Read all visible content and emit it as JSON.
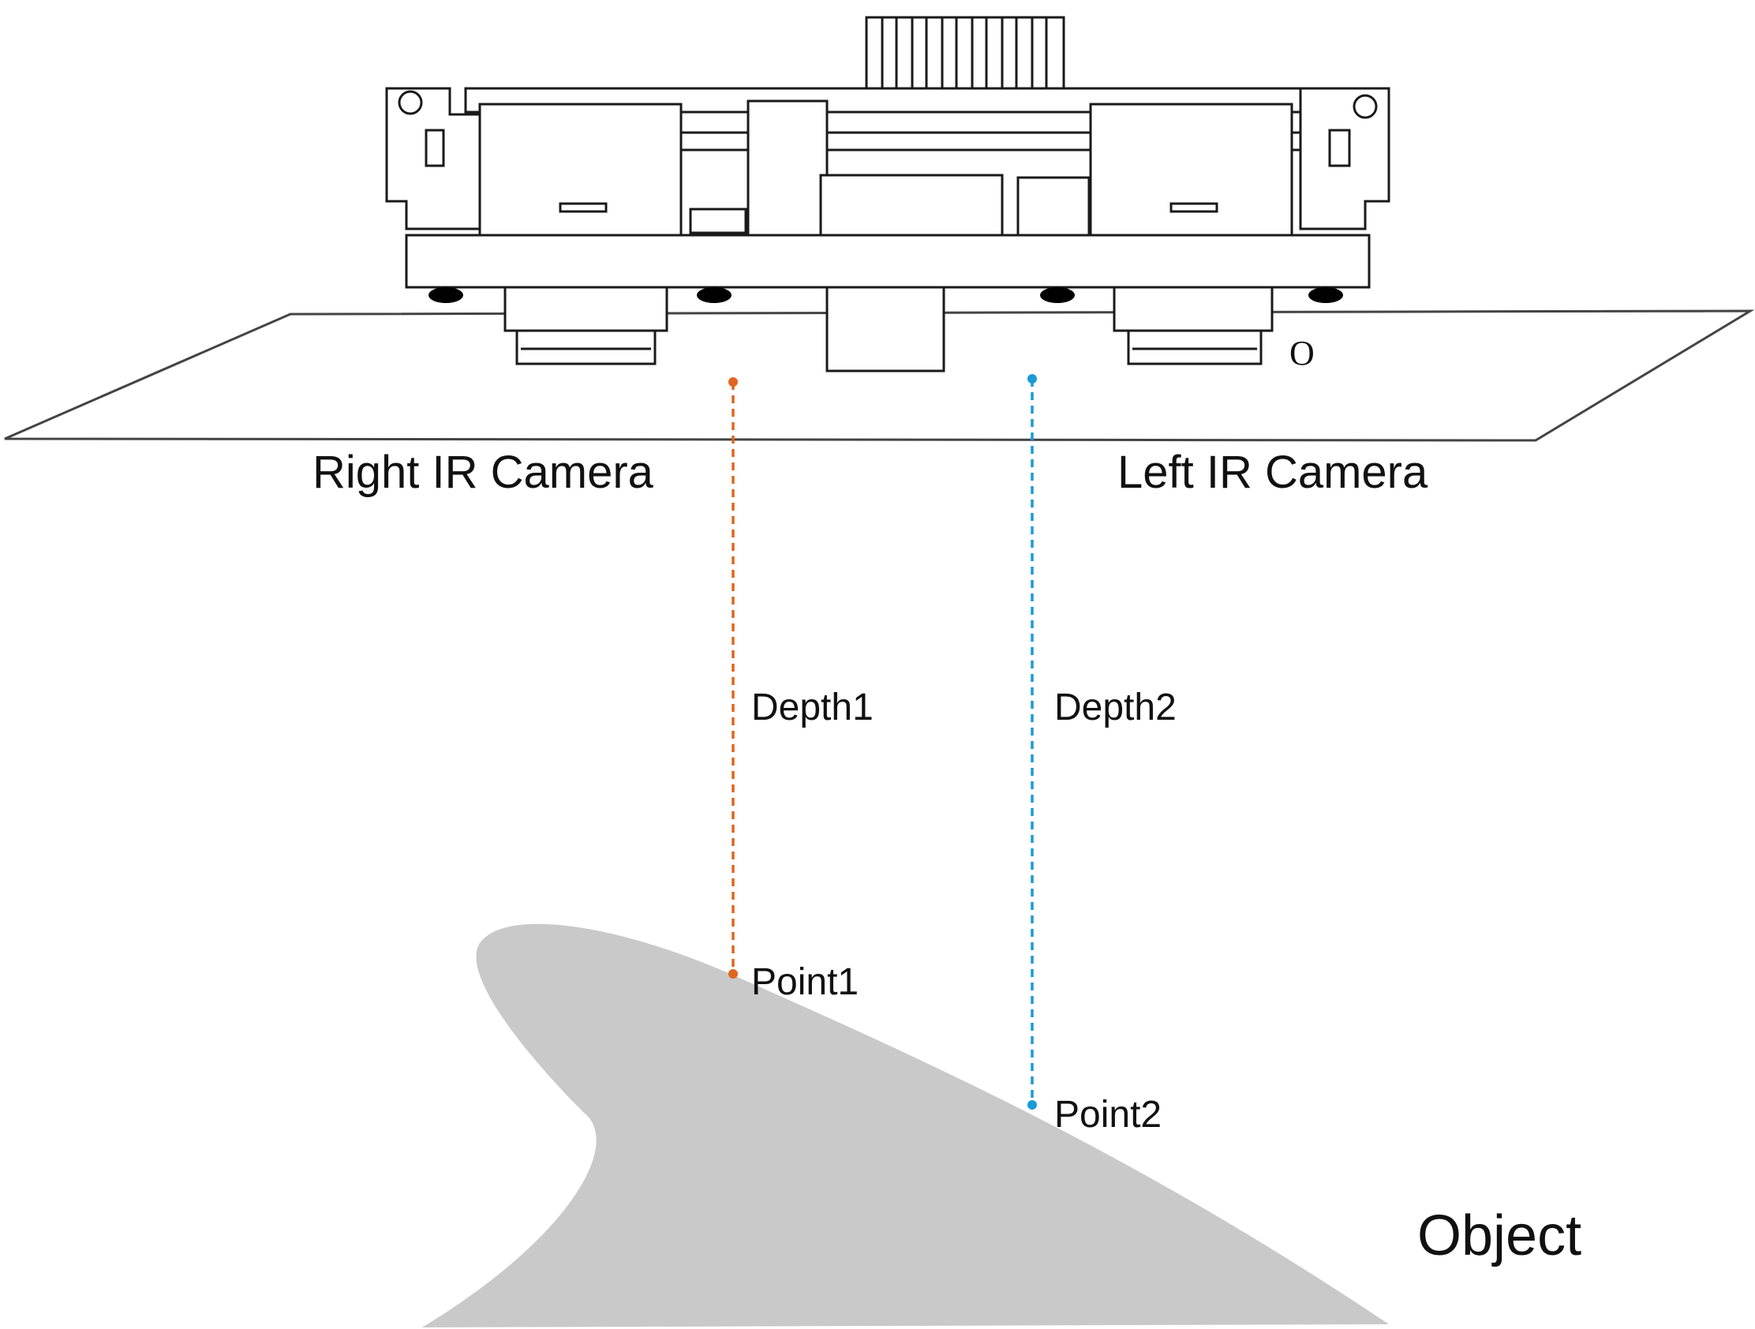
{
  "labels": {
    "right_camera": "Right IR Camera",
    "left_camera": "Left IR Camera",
    "origin": "O",
    "depth1": "Depth1",
    "depth2": "Depth2",
    "point1": "Point1",
    "point2": "Point2",
    "object": "Object"
  },
  "colors": {
    "depth1_line": "#E0651E",
    "depth2_line": "#1A9AD6",
    "object_fill": "#C8C9C8",
    "outline": "#1a1a1a"
  }
}
